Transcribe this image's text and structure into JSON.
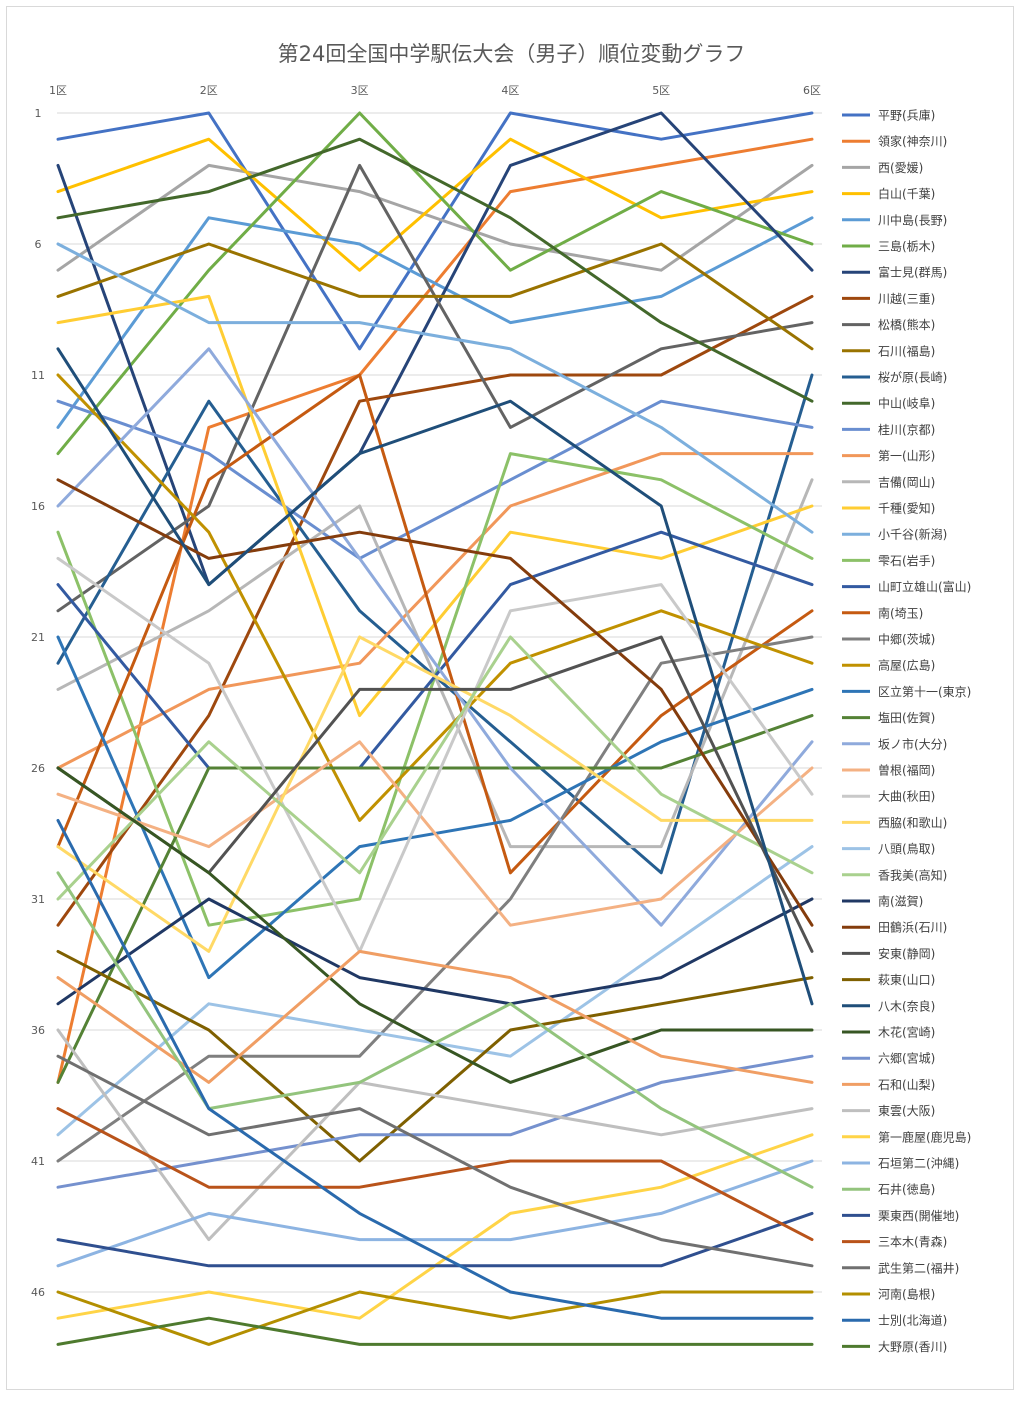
{
  "chart_data": {
    "type": "line",
    "title": "第24回全国中学駅伝大会（男子）順位変動グラフ",
    "categories": [
      "1区",
      "2区",
      "3区",
      "4区",
      "5区",
      "6区"
    ],
    "y_ticks": [
      "1",
      "6",
      "11",
      "16",
      "21",
      "26",
      "31",
      "36",
      "41",
      "46"
    ],
    "ylim": [
      1,
      48
    ],
    "y_reversed": true,
    "grid": "horizontal",
    "legend_position": "right",
    "series": [
      {
        "name": "平野(兵庫)",
        "color": "#4472c4",
        "values": [
          2,
          1,
          10,
          1,
          2,
          1
        ]
      },
      {
        "name": "領家(神奈川)",
        "color": "#ed7d31",
        "values": [
          38,
          13,
          11,
          4,
          3,
          2
        ]
      },
      {
        "name": "西(愛媛)",
        "color": "#a5a5a5",
        "values": [
          7,
          3,
          4,
          6,
          7,
          3
        ]
      },
      {
        "name": "白山(千葉)",
        "color": "#ffc000",
        "values": [
          4,
          2,
          7,
          2,
          5,
          4
        ]
      },
      {
        "name": "川中島(長野)",
        "color": "#5b9bd5",
        "values": [
          13,
          5,
          6,
          9,
          8,
          5
        ]
      },
      {
        "name": "三島(栃木)",
        "color": "#70ad47",
        "values": [
          14,
          7,
          1,
          7,
          4,
          6
        ]
      },
      {
        "name": "富士見(群馬)",
        "color": "#264478",
        "values": [
          3,
          19,
          14,
          3,
          1,
          7
        ]
      },
      {
        "name": "川越(三重)",
        "color": "#9e480e",
        "values": [
          32,
          24,
          12,
          11,
          11,
          8
        ]
      },
      {
        "name": "松橋(熊本)",
        "color": "#636363",
        "values": [
          20,
          16,
          3,
          13,
          10,
          9
        ]
      },
      {
        "name": "石川(福島)",
        "color": "#997300",
        "values": [
          8,
          6,
          8,
          8,
          6,
          10
        ]
      },
      {
        "name": "桜が原(長崎)",
        "color": "#255e91",
        "values": [
          22,
          12,
          20,
          25,
          30,
          11
        ]
      },
      {
        "name": "中山(岐阜)",
        "color": "#43682b",
        "values": [
          5,
          4,
          2,
          5,
          9,
          12
        ]
      },
      {
        "name": "桂川(京都)",
        "color": "#698ed0",
        "values": [
          12,
          14,
          18,
          15,
          12,
          13
        ]
      },
      {
        "name": "第一(山形)",
        "color": "#f1975a",
        "values": [
          26,
          23,
          22,
          16,
          14,
          14
        ]
      },
      {
        "name": "吉備(岡山)",
        "color": "#b7b7b7",
        "values": [
          23,
          20,
          16,
          29,
          29,
          15
        ]
      },
      {
        "name": "千種(愛知)",
        "color": "#ffcd33",
        "values": [
          9,
          8,
          24,
          17,
          18,
          16
        ]
      },
      {
        "name": "小千谷(新潟)",
        "color": "#7cafdd",
        "values": [
          6,
          9,
          9,
          10,
          13,
          17
        ]
      },
      {
        "name": "雫石(岩手)",
        "color": "#8cc168",
        "values": [
          17,
          32,
          31,
          14,
          15,
          18
        ]
      },
      {
        "name": "山町立雄山(富山)",
        "color": "#335aa1",
        "values": [
          19,
          26,
          26,
          19,
          17,
          19
        ]
      },
      {
        "name": "南(埼玉)",
        "color": "#c55a11",
        "values": [
          29,
          15,
          11,
          30,
          24,
          20
        ]
      },
      {
        "name": "中郷(茨城)",
        "color": "#7f7f7f",
        "values": [
          41,
          37,
          37,
          31,
          22,
          21
        ]
      },
      {
        "name": "高屋(広島)",
        "color": "#c09100",
        "values": [
          11,
          17,
          28,
          22,
          20,
          22
        ]
      },
      {
        "name": "区立第十一(東京)",
        "color": "#2e75b6",
        "values": [
          21,
          34,
          29,
          28,
          25,
          23
        ]
      },
      {
        "name": "塩田(佐賀)",
        "color": "#548235",
        "values": [
          38,
          26,
          26,
          26,
          26,
          24
        ]
      },
      {
        "name": "坂ノ市(大分)",
        "color": "#8faadc",
        "values": [
          16,
          10,
          18,
          26,
          32,
          25
        ]
      },
      {
        "name": "曽根(福岡)",
        "color": "#f4b183",
        "values": [
          27,
          29,
          25,
          32,
          31,
          26
        ]
      },
      {
        "name": "大曲(秋田)",
        "color": "#c9c9c9",
        "values": [
          18,
          22,
          33,
          20,
          19,
          27
        ]
      },
      {
        "name": "西脇(和歌山)",
        "color": "#ffd966",
        "values": [
          29,
          33,
          21,
          24,
          28,
          28
        ]
      },
      {
        "name": "八頭(鳥取)",
        "color": "#9dc3e6",
        "values": [
          40,
          35,
          36,
          37,
          33,
          29
        ]
      },
      {
        "name": "香我美(高知)",
        "color": "#a9d18e",
        "values": [
          31,
          25,
          30,
          21,
          27,
          30
        ]
      },
      {
        "name": "南(滋賀)",
        "color": "#203864",
        "values": [
          35,
          31,
          34,
          35,
          34,
          31
        ]
      },
      {
        "name": "田鶴浜(石川)",
        "color": "#843c0c",
        "values": [
          15,
          18,
          17,
          18,
          23,
          32
        ]
      },
      {
        "name": "安東(静岡)",
        "color": "#525252",
        "values": [
          26,
          30,
          23,
          23,
          21,
          33
        ]
      },
      {
        "name": "萩東(山口)",
        "color": "#7f6000",
        "values": [
          33,
          36,
          41,
          36,
          35,
          34
        ]
      },
      {
        "name": "八木(奈良)",
        "color": "#1f4e79",
        "values": [
          10,
          19,
          14,
          12,
          16,
          35
        ]
      },
      {
        "name": "木花(宮崎)",
        "color": "#375623",
        "values": [
          26,
          30,
          35,
          38,
          36,
          36
        ]
      },
      {
        "name": "六郷(宮城)",
        "color": "#7591ce",
        "values": [
          42,
          41,
          40,
          40,
          38,
          37
        ]
      },
      {
        "name": "石和(山梨)",
        "color": "#f09e64",
        "values": [
          34,
          38,
          33,
          34,
          37,
          38
        ]
      },
      {
        "name": "東雲(大阪)",
        "color": "#bfbfbf",
        "values": [
          36,
          44,
          38,
          39,
          40,
          39
        ]
      },
      {
        "name": "第一鹿屋(鹿児島)",
        "color": "#ffd447",
        "values": [
          47,
          46,
          47,
          43,
          42,
          40
        ]
      },
      {
        "name": "石垣第二(沖縄)",
        "color": "#8db4e2",
        "values": [
          45,
          43,
          44,
          44,
          43,
          41
        ]
      },
      {
        "name": "石井(徳島)",
        "color": "#93c47d",
        "values": [
          30,
          39,
          38,
          35,
          39,
          42
        ]
      },
      {
        "name": "栗東西(開催地)",
        "color": "#2f4f8f",
        "values": [
          44,
          45,
          45,
          45,
          45,
          43
        ]
      },
      {
        "name": "三本木(青森)",
        "color": "#b9531a",
        "values": [
          39,
          42,
          42,
          41,
          41,
          44
        ]
      },
      {
        "name": "武生第二(福井)",
        "color": "#707070",
        "values": [
          37,
          40,
          39,
          42,
          44,
          45
        ]
      },
      {
        "name": "河南(島根)",
        "color": "#b38f00",
        "values": [
          46,
          48,
          46,
          47,
          46,
          46
        ]
      },
      {
        "name": "士別(北海道)",
        "color": "#2a6aad",
        "values": [
          28,
          39,
          43,
          46,
          47,
          47
        ]
      },
      {
        "name": "大野原(香川)",
        "color": "#4e7a2e",
        "values": [
          48,
          47,
          48,
          48,
          48,
          48
        ]
      }
    ]
  }
}
